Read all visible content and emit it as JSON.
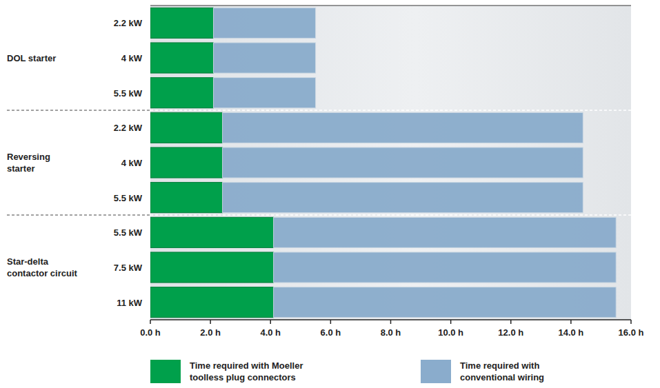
{
  "chart_data": {
    "type": "bar",
    "orientation": "horizontal",
    "stacked": true,
    "grid": false,
    "legend": "bottom",
    "categories": [
      "2.2 kW",
      "4 kW",
      "5.5 kW",
      "2.2 kW",
      "4 kW",
      "5.5 kW",
      "5.5 kW",
      "7.5 kW",
      "11 kW"
    ],
    "groups": [
      {
        "label": "DOL starter",
        "size": 3
      },
      {
        "label": "Reversing starter",
        "size": 3
      },
      {
        "label": "Star-delta contactor circuit",
        "size": 3
      }
    ],
    "series": [
      {
        "name": "Time required with Moeller toolless plug connectors",
        "color": "#00a04b",
        "values": [
          2.1,
          2.1,
          2.1,
          2.4,
          2.4,
          2.4,
          4.1,
          4.1,
          4.1
        ]
      },
      {
        "name": "Time required with conventional wiring",
        "color": "#8aaccc",
        "values": [
          3.4,
          3.4,
          3.4,
          12.0,
          12.0,
          12.0,
          11.4,
          11.4,
          11.4
        ]
      }
    ],
    "xlim": [
      0,
      16
    ],
    "xticks": [
      {
        "value": 0,
        "label": "0.0 h"
      },
      {
        "value": 2,
        "label": "2.0 h"
      },
      {
        "value": 4,
        "label": "4.0 h"
      },
      {
        "value": 6,
        "label": "6.0 h"
      },
      {
        "value": 8,
        "label": "8.0 h"
      },
      {
        "value": 10,
        "label": "10.0 h"
      },
      {
        "value": 12,
        "label": "12.0 h"
      },
      {
        "value": 14,
        "label": "14.0 h"
      },
      {
        "value": 16,
        "label": "16.0 h"
      }
    ]
  }
}
